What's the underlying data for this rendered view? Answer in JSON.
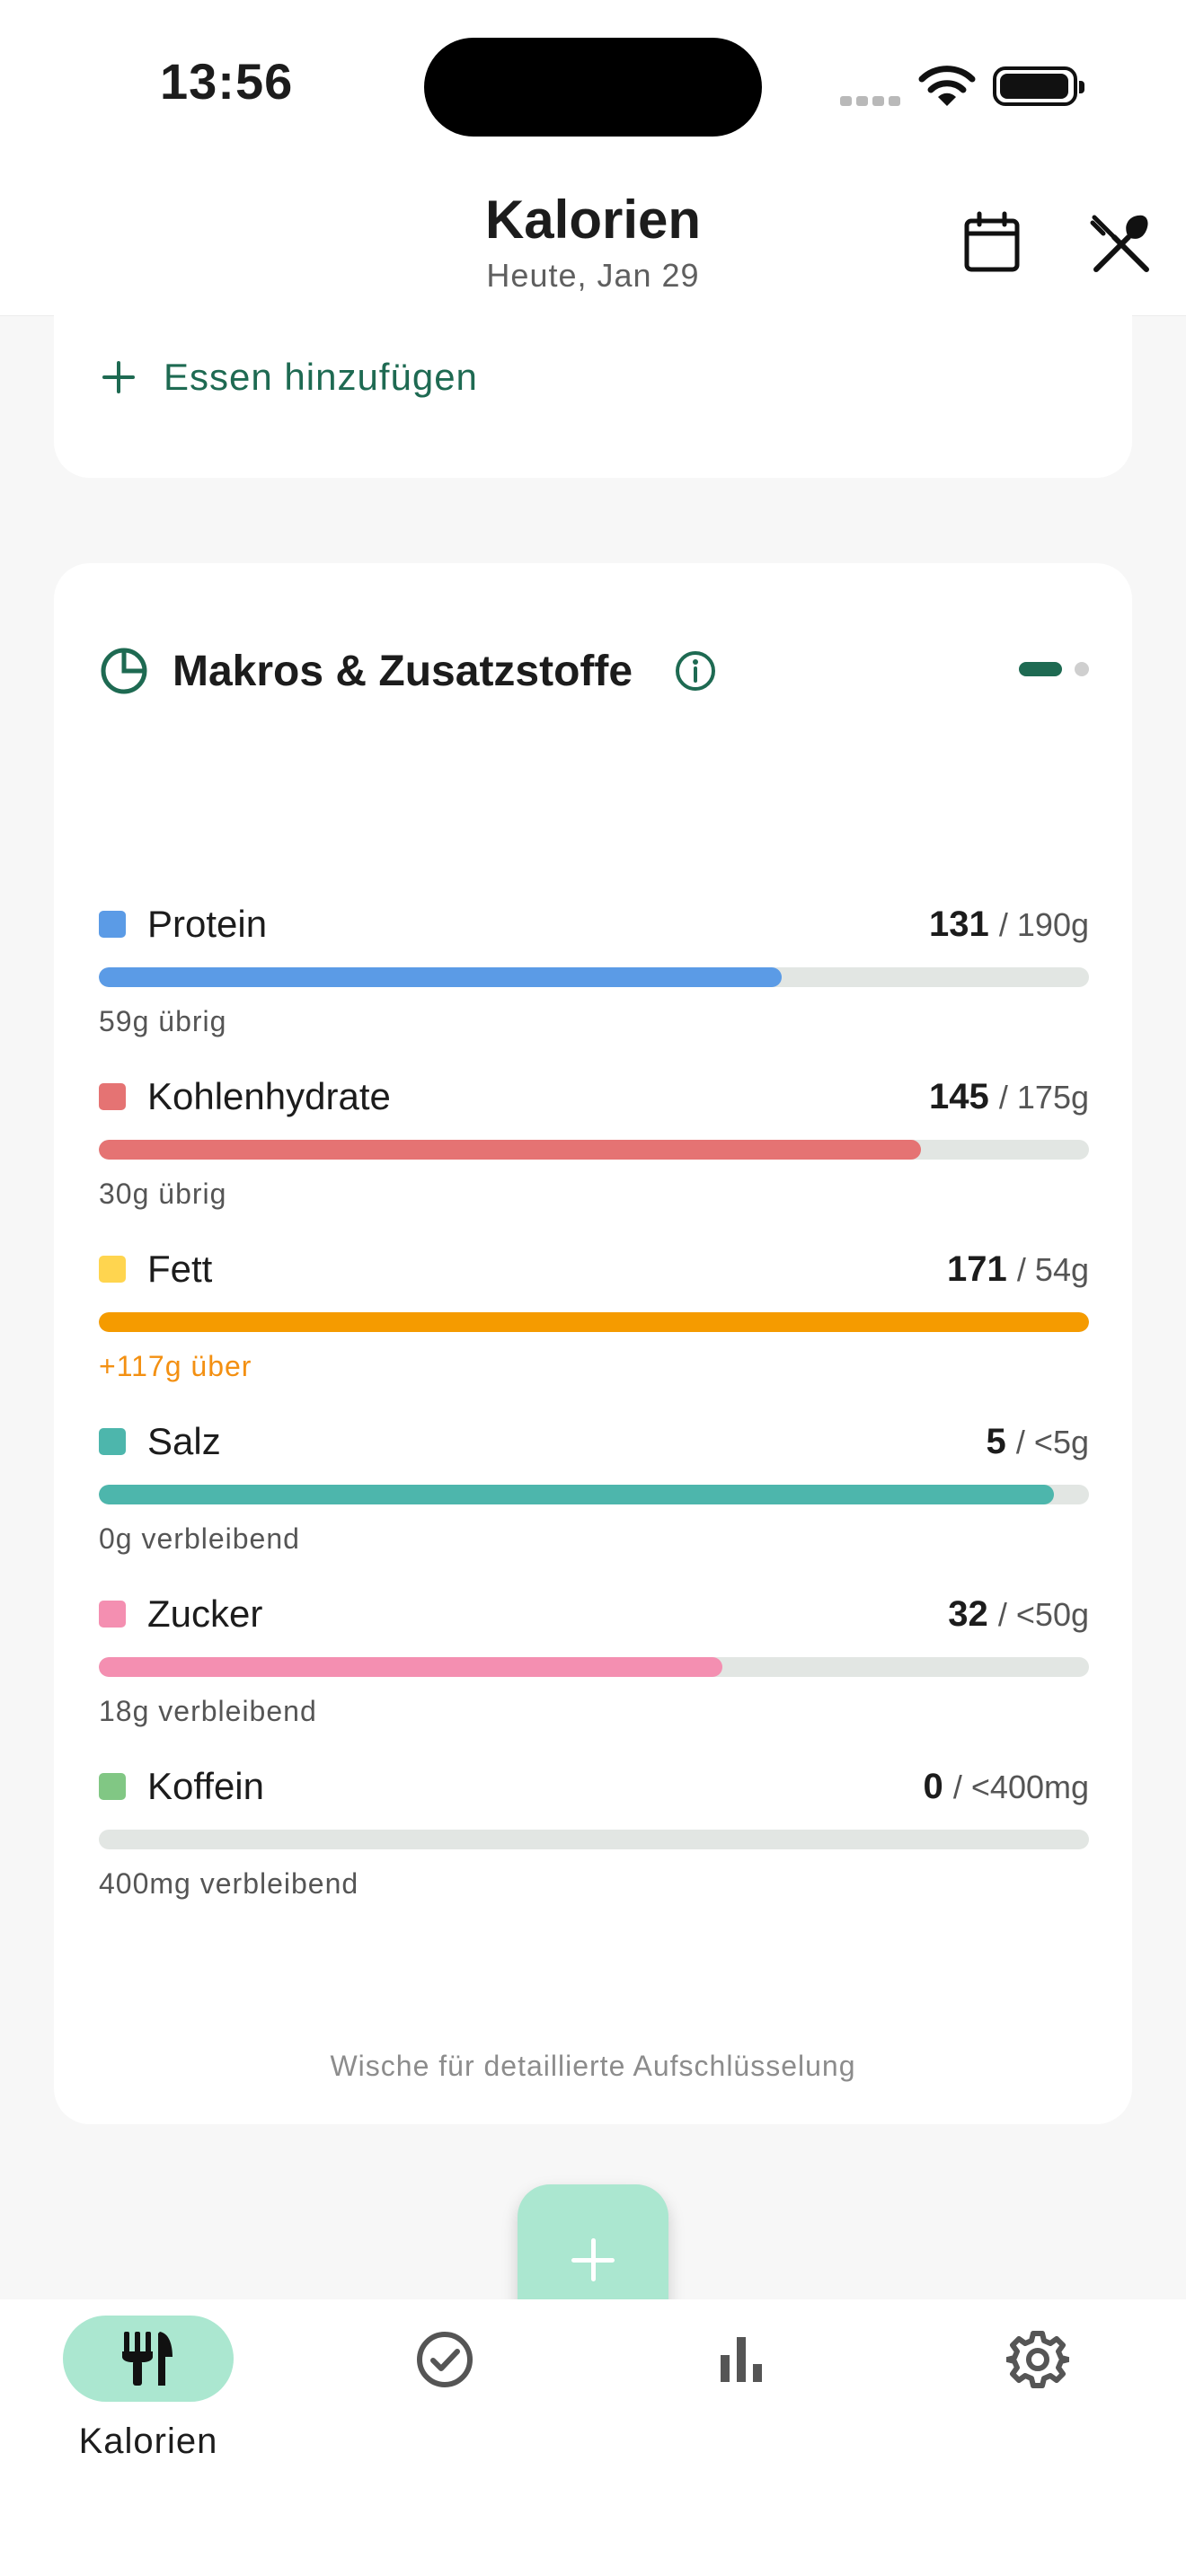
{
  "status_bar": {
    "time": "13:56"
  },
  "header": {
    "title": "Kalorien",
    "subtitle": "Heute, Jan 29"
  },
  "add_food": {
    "label": "Essen hinzufügen"
  },
  "macros_card": {
    "title": "Makros & Zusatzstoffe",
    "pager": {
      "page": 1,
      "total": 2
    },
    "swipe_hint": "Wische für detaillierte Aufschlüsselung",
    "items": [
      {
        "name": "Protein",
        "value": "131",
        "goal": "/ 190g",
        "remaining": "59g übrig",
        "progress": 0.69,
        "color": "#5b9be6",
        "over": false
      },
      {
        "name": "Kohlenhydrate",
        "value": "145",
        "goal": "/ 175g",
        "remaining": "30g übrig",
        "progress": 0.83,
        "color": "#e57373",
        "over": false
      },
      {
        "name": "Fett",
        "value": "171",
        "goal": "/ 54g",
        "remaining": "+117g über",
        "progress": 1.0,
        "color": "#f59b00",
        "swatch_color": "#ffd54f",
        "over": true
      },
      {
        "name": "Salz",
        "value": "5",
        "goal": "/ <5g",
        "remaining": "0g verbleibend",
        "progress": 0.965,
        "color": "#4db6ac",
        "over": false
      },
      {
        "name": "Zucker",
        "value": "32",
        "goal": "/ <50g",
        "remaining": "18g verbleibend",
        "progress": 0.63,
        "color": "#f48fb1",
        "over": false
      },
      {
        "name": "Koffein",
        "value": "0",
        "goal": "/ <400mg",
        "remaining": "400mg verbleibend",
        "progress": 0.0,
        "color": "#81c784",
        "over": false
      }
    ]
  },
  "bottom_nav": {
    "active": "calories",
    "items": [
      {
        "id": "calories",
        "icon": "utensils-icon",
        "label": "Kalorien"
      },
      {
        "id": "habits",
        "icon": "check-circle-icon",
        "label": ""
      },
      {
        "id": "stats",
        "icon": "bar-chart-icon",
        "label": ""
      },
      {
        "id": "settings",
        "icon": "gear-icon",
        "label": ""
      }
    ]
  },
  "colors": {
    "accent": "#1e6a52",
    "accent_light": "#abe7d0",
    "background": "#f7f7f7",
    "over_limit": "#f39012"
  }
}
